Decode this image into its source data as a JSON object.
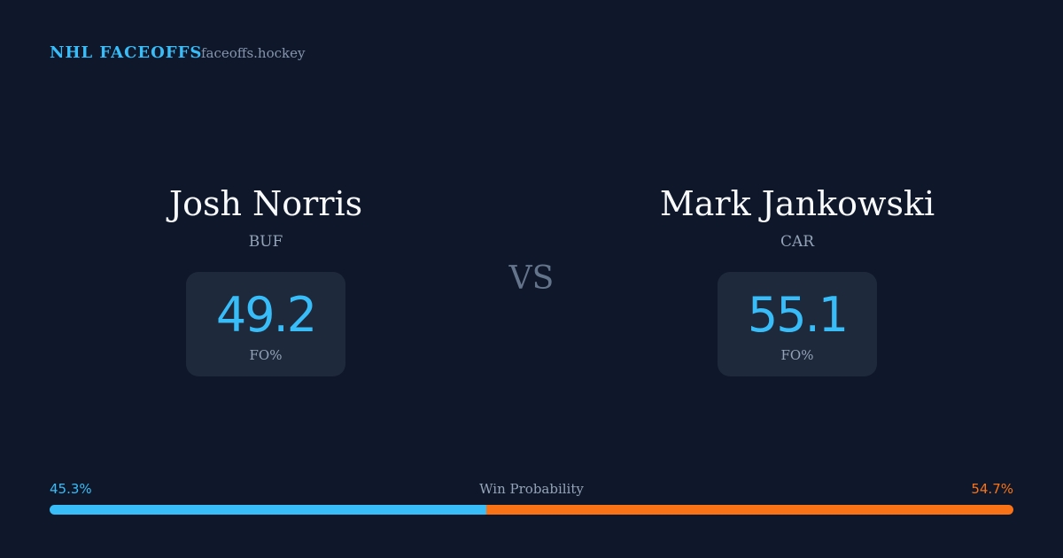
{
  "header": {
    "brand": "NHL FACEOFFS",
    "site": "faceoffs.hockey"
  },
  "players": [
    {
      "name": "Josh Norris",
      "team": "BUF",
      "stat_value": 49.2,
      "stat_label": "FO%"
    },
    {
      "name": "Mark Jankowski",
      "team": "CAR",
      "stat_value": 55.1,
      "stat_label": "FO%"
    }
  ],
  "vs": "VS",
  "win_probability": {
    "label": "Win Probability",
    "values": [
      45.3,
      54.7
    ],
    "value_labels": [
      "45.3%",
      "54.7%"
    ],
    "colors": [
      "#38bdf8",
      "#f97316"
    ]
  }
}
